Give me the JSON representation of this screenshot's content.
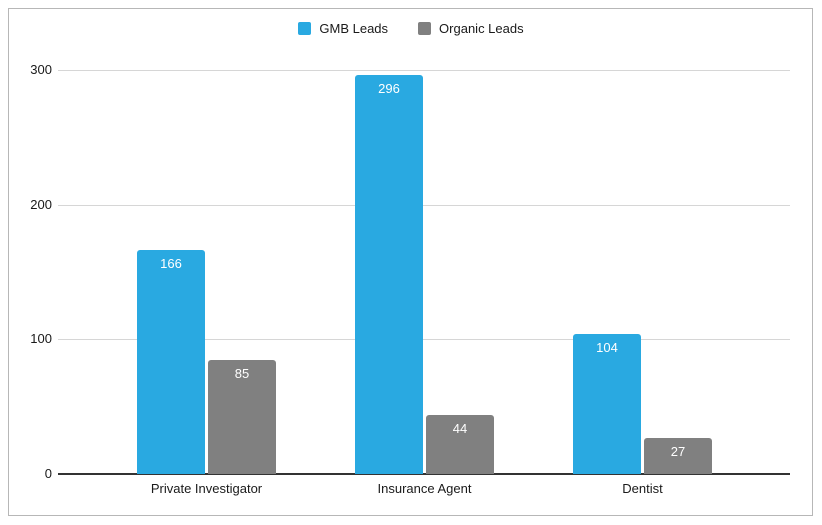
{
  "chart_data": {
    "type": "bar",
    "title": "",
    "categories": [
      "Private Investigator",
      "Insurance Agent",
      "Dentist"
    ],
    "series": [
      {
        "name": "GMB Leads",
        "color": "#29a9e1",
        "values": [
          166,
          296,
          104
        ]
      },
      {
        "name": "Organic Leads",
        "color": "#808080",
        "values": [
          85,
          44,
          27
        ]
      }
    ],
    "ylim": [
      0,
      300
    ],
    "yticks": [
      0,
      100,
      200,
      300
    ],
    "grid": true,
    "legend_position": "top",
    "value_labels_position": "inside-top",
    "value_label_color": "#ffffff",
    "xlabel": "",
    "ylabel": ""
  },
  "style": {
    "frame_border_color": "#b7b7b7",
    "background_color": "#ffffff",
    "gridline_color": "#d6d6d6",
    "axis_line_color": "#333333",
    "text_color": "#1a1a1a"
  }
}
